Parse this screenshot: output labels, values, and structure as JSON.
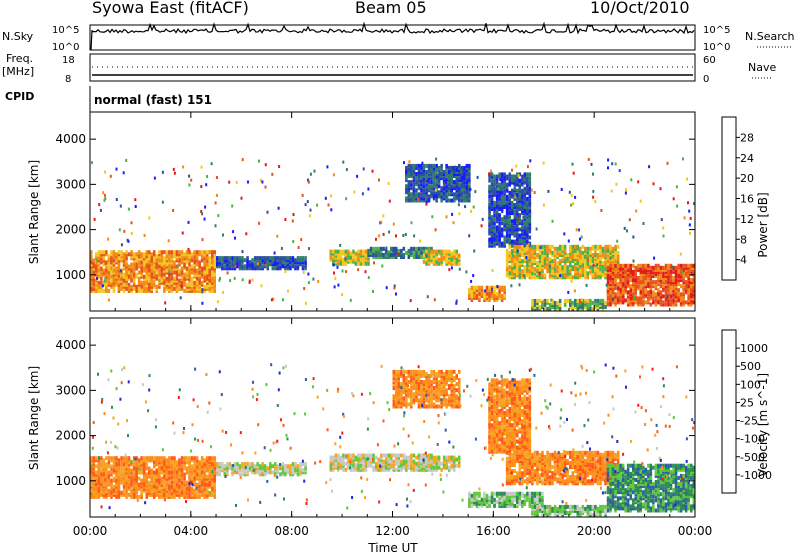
{
  "header": {
    "station": "Syowa East (fitACF)",
    "beam": "Beam 05",
    "date": "10/Oct/2010"
  },
  "panels": {
    "nsky": {
      "left_label": "N.Sky",
      "right_label": "N.Search",
      "left_ticks": [
        "10^5",
        "10^0"
      ],
      "right_ticks": [
        "10^5",
        "10^0"
      ]
    },
    "freq": {
      "left_label_1": "Freq.",
      "left_label_2": "[MHz]",
      "right_label": "Nave",
      "left_ticks": [
        "18",
        "8"
      ],
      "right_ticks": [
        "60",
        "0"
      ]
    },
    "cpid": {
      "label": "CPID",
      "value": "normal (fast) 151"
    }
  },
  "colors": {
    "power_scale": [
      "#1a1aff",
      "#2b4fa0",
      "#2e7d6b",
      "#4fb04a",
      "#f2c71e",
      "#f28c14",
      "#e8521c",
      "#e31a1c"
    ],
    "velocity_scale": [
      "#ff1a1a",
      "#ff5a1a",
      "#ff8c1a",
      "#f5a623",
      "#c8c8c8",
      "#5fc83c",
      "#2e8b57",
      "#2b5fa0",
      "#1a2bd0"
    ]
  },
  "chart_data": [
    {
      "type": "heatmap",
      "panel": "power",
      "ylabel": "Slant Range [km]",
      "xlabel": "",
      "y_ticks": [
        "1000",
        "2000",
        "3000",
        "4000"
      ],
      "ylim": [
        200,
        4600
      ],
      "colorbar_label": "Power [dB]",
      "colorbar_ticks": [
        "4",
        "8",
        "12",
        "16",
        "20",
        "24",
        "28"
      ],
      "regions": [
        {
          "t0": 0.0,
          "t1": 4.9,
          "r0": 600,
          "r1": 1500,
          "level": 5
        },
        {
          "t0": 5.0,
          "t1": 8.5,
          "r0": 1100,
          "r1": 1350,
          "level": 1
        },
        {
          "t0": 9.5,
          "t1": 11.0,
          "r0": 1200,
          "r1": 1500,
          "level": 4
        },
        {
          "t0": 11.0,
          "t1": 13.5,
          "r0": 1350,
          "r1": 1550,
          "level": 2
        },
        {
          "t0": 13.2,
          "t1": 14.6,
          "r0": 1200,
          "r1": 1500,
          "level": 4
        },
        {
          "t0": 15.0,
          "t1": 16.5,
          "r0": 400,
          "r1": 700,
          "level": 5
        },
        {
          "t0": 15.8,
          "t1": 17.5,
          "r0": 1600,
          "r1": 3200,
          "level": 1
        },
        {
          "t0": 16.5,
          "t1": 21.0,
          "r0": 900,
          "r1": 1600,
          "level": 4
        },
        {
          "t0": 17.5,
          "t1": 20.5,
          "r0": 200,
          "r1": 400,
          "level": 3
        },
        {
          "t0": 20.5,
          "t1": 24.0,
          "r0": 300,
          "r1": 1200,
          "level": 6
        },
        {
          "t0": 12.5,
          "t1": 15.0,
          "r0": 2600,
          "r1": 3400,
          "level": 1
        }
      ]
    },
    {
      "type": "heatmap",
      "panel": "velocity",
      "ylabel": "Slant Range [km]",
      "xlabel": "Time UT",
      "x_ticks": [
        "00:00",
        "04:00",
        "08:00",
        "12:00",
        "16:00",
        "20:00",
        "00:00"
      ],
      "y_ticks": [
        "1000",
        "2000",
        "3000",
        "4000"
      ],
      "ylim": [
        200,
        4600
      ],
      "colorbar_label": "Velocity [m s^-1]",
      "colorbar_ticks": [
        "1000",
        "500",
        "100",
        "25",
        "-25",
        "-100",
        "-500",
        "-1000"
      ],
      "regions": [
        {
          "t0": 0.0,
          "t1": 4.9,
          "r0": 600,
          "r1": 1500,
          "level": 2
        },
        {
          "t0": 5.0,
          "t1": 8.5,
          "r0": 1100,
          "r1": 1350,
          "level": 4
        },
        {
          "t0": 9.5,
          "t1": 13.5,
          "r0": 1200,
          "r1": 1550,
          "level": 4
        },
        {
          "t0": 13.2,
          "t1": 14.6,
          "r0": 1200,
          "r1": 1500,
          "level": 4
        },
        {
          "t0": 15.0,
          "t1": 18.0,
          "r0": 400,
          "r1": 700,
          "level": 5
        },
        {
          "t0": 15.8,
          "t1": 17.5,
          "r0": 1600,
          "r1": 3200,
          "level": 2
        },
        {
          "t0": 16.5,
          "t1": 21.0,
          "r0": 900,
          "r1": 1600,
          "level": 2
        },
        {
          "t0": 12.0,
          "t1": 14.6,
          "r0": 2600,
          "r1": 3400,
          "level": 2
        },
        {
          "t0": 20.5,
          "t1": 24.0,
          "r0": 300,
          "r1": 1300,
          "level": 6
        },
        {
          "t0": 17.5,
          "t1": 20.5,
          "r0": 200,
          "r1": 400,
          "level": 5
        }
      ]
    }
  ]
}
